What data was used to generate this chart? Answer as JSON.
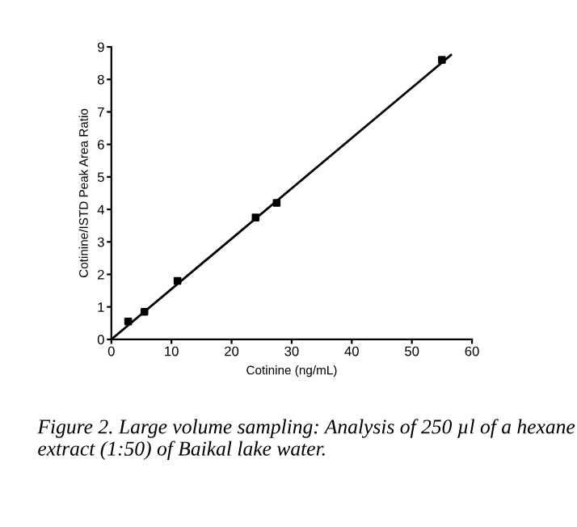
{
  "chart_data": {
    "type": "scatter",
    "xlabel": "Cotinine (ng/mL)",
    "ylabel": "Cotinine/ISTD Peak Area Ratio",
    "annotations": [
      "Figure 2. Large volume sampling: Analysis of 250 µl of a hexane extract (1:50) of Baikal lake water."
    ],
    "series": [
      {
        "color": "#000000",
        "x": [
          2.8,
          5.5,
          11,
          24,
          27.5,
          55
        ],
        "values": [
          0.55,
          0.85,
          1.8,
          3.75,
          4.2,
          8.6
        ],
        "marker": "square"
      },
      {
        "type": "line",
        "color": "#000000",
        "x": [
          0,
          56.5
        ],
        "values": [
          0,
          8.75
        ],
        "marker": "none",
        "line_style": "solid"
      }
    ],
    "xlim": [
      0,
      60
    ],
    "xticks": [
      0,
      10,
      20,
      30,
      40,
      50,
      60
    ],
    "ylim": [
      0,
      9
    ],
    "yticks": [
      0,
      1,
      2,
      3,
      4,
      5,
      6,
      7,
      8,
      9
    ],
    "grid": false,
    "legend": false
  }
}
